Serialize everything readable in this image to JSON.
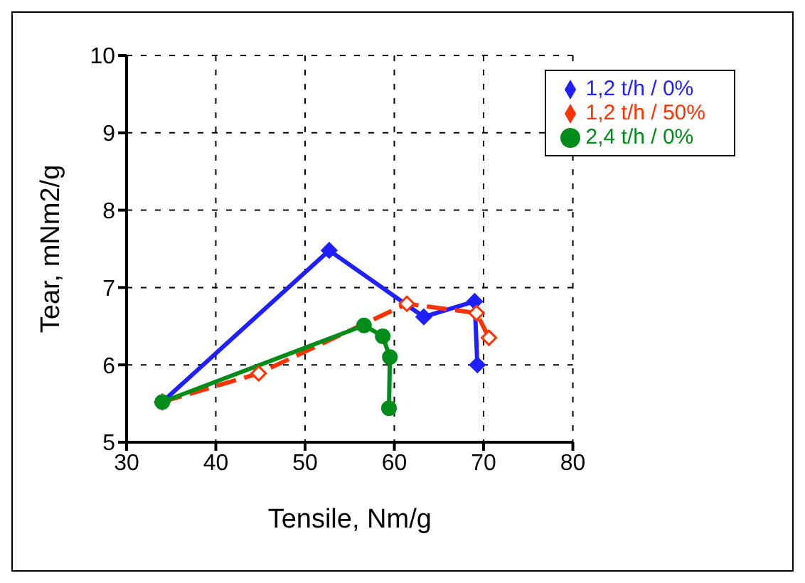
{
  "chart_data": {
    "type": "line",
    "xlabel": "Tensile, Nm/g",
    "ylabel": "Tear, mNm2/g",
    "xlim": [
      30,
      80
    ],
    "xticks": [
      30,
      40,
      50,
      60,
      70,
      80
    ],
    "ylim": [
      5,
      10
    ],
    "yticks": [
      5,
      6,
      7,
      8,
      9,
      10
    ],
    "grid": true,
    "legend": "top right",
    "series": [
      {
        "name": "1,2 t/h / 0%",
        "color": "#1f1fff",
        "marker": "diamond",
        "line_style": "solid",
        "x": [
          34,
          52.7,
          63.3,
          69.0,
          69.3
        ],
        "values": [
          5.52,
          7.48,
          6.62,
          6.82,
          6.0
        ]
      },
      {
        "name": "1,2 t/h / 50%",
        "color": "#ff3300",
        "marker": "diamond",
        "line_style": "dashed",
        "x": [
          34,
          44.8,
          61.4,
          69.2,
          70.6
        ],
        "values": [
          5.52,
          5.89,
          6.79,
          6.67,
          6.35
        ]
      },
      {
        "name": "2,4 t/h / 0%",
        "color": "#008c1a",
        "marker": "circle",
        "line_style": "solid",
        "x": [
          34,
          56.6,
          58.7,
          59.5,
          59.4
        ],
        "values": [
          5.52,
          6.51,
          6.37,
          6.1,
          5.44
        ]
      }
    ]
  }
}
